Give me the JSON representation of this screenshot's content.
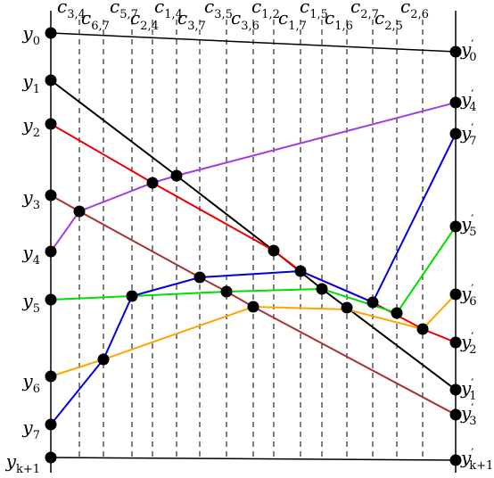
{
  "left_labels": [
    {
      "id": "y0",
      "base": "y",
      "sub": "0",
      "prime": false
    },
    {
      "id": "y1",
      "base": "y",
      "sub": "1",
      "prime": false
    },
    {
      "id": "y2",
      "base": "y",
      "sub": "2",
      "prime": false
    },
    {
      "id": "y3",
      "base": "y",
      "sub": "3",
      "prime": false
    },
    {
      "id": "y4",
      "base": "y",
      "sub": "4",
      "prime": false
    },
    {
      "id": "y5",
      "base": "y",
      "sub": "5",
      "prime": false
    },
    {
      "id": "y6",
      "base": "y",
      "sub": "6",
      "prime": false
    },
    {
      "id": "y7",
      "base": "y",
      "sub": "7",
      "prime": false
    },
    {
      "id": "yk1",
      "base": "y",
      "sub": "k+1",
      "prime": false
    }
  ],
  "right_labels": [
    {
      "id": "yp0",
      "base": "y",
      "sub": "0",
      "prime": true
    },
    {
      "id": "yp4",
      "base": "y",
      "sub": "4",
      "prime": true
    },
    {
      "id": "yp7",
      "base": "y",
      "sub": "7",
      "prime": true
    },
    {
      "id": "yp5",
      "base": "y",
      "sub": "5",
      "prime": true
    },
    {
      "id": "yp6",
      "base": "y",
      "sub": "6",
      "prime": true
    },
    {
      "id": "yp2",
      "base": "y",
      "sub": "2",
      "prime": true
    },
    {
      "id": "yp1",
      "base": "y",
      "sub": "1",
      "prime": true
    },
    {
      "id": "yp3",
      "base": "y",
      "sub": "3",
      "prime": true
    },
    {
      "id": "ypk1",
      "base": "y",
      "sub": "k+1",
      "prime": true
    }
  ],
  "top_labels": [
    {
      "id": "c34",
      "base": "c",
      "sub": "3,4"
    },
    {
      "id": "c67",
      "base": "c",
      "sub": "6,7"
    },
    {
      "id": "c57",
      "base": "c",
      "sub": "5,7"
    },
    {
      "id": "c24",
      "base": "c",
      "sub": "2,4"
    },
    {
      "id": "c14",
      "base": "c",
      "sub": "1,4"
    },
    {
      "id": "c37",
      "base": "c",
      "sub": "3,7"
    },
    {
      "id": "c35",
      "base": "c",
      "sub": "3,5"
    },
    {
      "id": "c36",
      "base": "c",
      "sub": "3,6"
    },
    {
      "id": "c12",
      "base": "c",
      "sub": "1,2"
    },
    {
      "id": "c17",
      "base": "c",
      "sub": "1,7"
    },
    {
      "id": "c15",
      "base": "c",
      "sub": "1,5"
    },
    {
      "id": "c16",
      "base": "c",
      "sub": "1,6"
    },
    {
      "id": "c27",
      "base": "c",
      "sub": "2,7"
    },
    {
      "id": "c25",
      "base": "c",
      "sub": "2,5"
    },
    {
      "id": "c26",
      "base": "c",
      "sub": "2,6"
    }
  ],
  "colors": {
    "line_0": "#000000",
    "line_1": "#000000",
    "line_2": "#ee0000",
    "line_3": "#a83232",
    "line_4": "#a040e0",
    "line_5": "#00dd00",
    "line_6": "#ffa500",
    "line_7": "#0000dd",
    "line_k1": "#000000"
  }
}
